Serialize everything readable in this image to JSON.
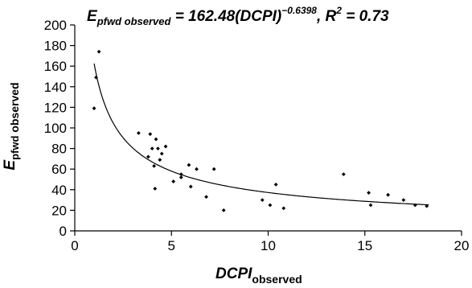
{
  "chart_data": {
    "type": "scatter",
    "title": {
      "lead": "E",
      "sub": "pfwd observed",
      "eq": " = 162.48(DCPI)",
      "exp": "−0.6398",
      "mid": ", R",
      "r2sup": "2",
      "tail": " = 0.73"
    },
    "xlabel": {
      "main": "DCPI",
      "sub": "observed"
    },
    "ylabel": {
      "main": "E",
      "sub": "pfwd",
      "rest": "observed"
    },
    "xlim": [
      0,
      20
    ],
    "ylim": [
      0,
      200
    ],
    "x_ticks": [
      0,
      5,
      10,
      15,
      20
    ],
    "y_ticks": [
      0,
      20,
      40,
      60,
      80,
      100,
      120,
      140,
      160,
      180,
      200
    ],
    "grid": false,
    "fit": {
      "type": "power",
      "a": 162.48,
      "b": -0.6398,
      "x_range": [
        1.0,
        18.3
      ]
    },
    "points": [
      {
        "x": 1.0,
        "y": 119
      },
      {
        "x": 1.1,
        "y": 149
      },
      {
        "x": 1.25,
        "y": 174
      },
      {
        "x": 3.3,
        "y": 95
      },
      {
        "x": 3.8,
        "y": 72
      },
      {
        "x": 3.9,
        "y": 94
      },
      {
        "x": 4.0,
        "y": 80
      },
      {
        "x": 4.1,
        "y": 63
      },
      {
        "x": 4.15,
        "y": 41
      },
      {
        "x": 4.2,
        "y": 89
      },
      {
        "x": 4.3,
        "y": 80
      },
      {
        "x": 4.4,
        "y": 69
      },
      {
        "x": 4.5,
        "y": 75
      },
      {
        "x": 4.7,
        "y": 82
      },
      {
        "x": 5.1,
        "y": 48
      },
      {
        "x": 5.5,
        "y": 55
      },
      {
        "x": 5.5,
        "y": 52
      },
      {
        "x": 5.9,
        "y": 64
      },
      {
        "x": 6.0,
        "y": 43
      },
      {
        "x": 6.3,
        "y": 60
      },
      {
        "x": 6.8,
        "y": 33
      },
      {
        "x": 7.2,
        "y": 60
      },
      {
        "x": 7.7,
        "y": 20
      },
      {
        "x": 9.7,
        "y": 30
      },
      {
        "x": 10.1,
        "y": 25
      },
      {
        "x": 10.4,
        "y": 45
      },
      {
        "x": 10.8,
        "y": 22
      },
      {
        "x": 13.9,
        "y": 55
      },
      {
        "x": 15.2,
        "y": 37
      },
      {
        "x": 15.3,
        "y": 25
      },
      {
        "x": 16.2,
        "y": 35
      },
      {
        "x": 17.0,
        "y": 30
      },
      {
        "x": 17.6,
        "y": 25
      },
      {
        "x": 18.2,
        "y": 24
      }
    ]
  }
}
